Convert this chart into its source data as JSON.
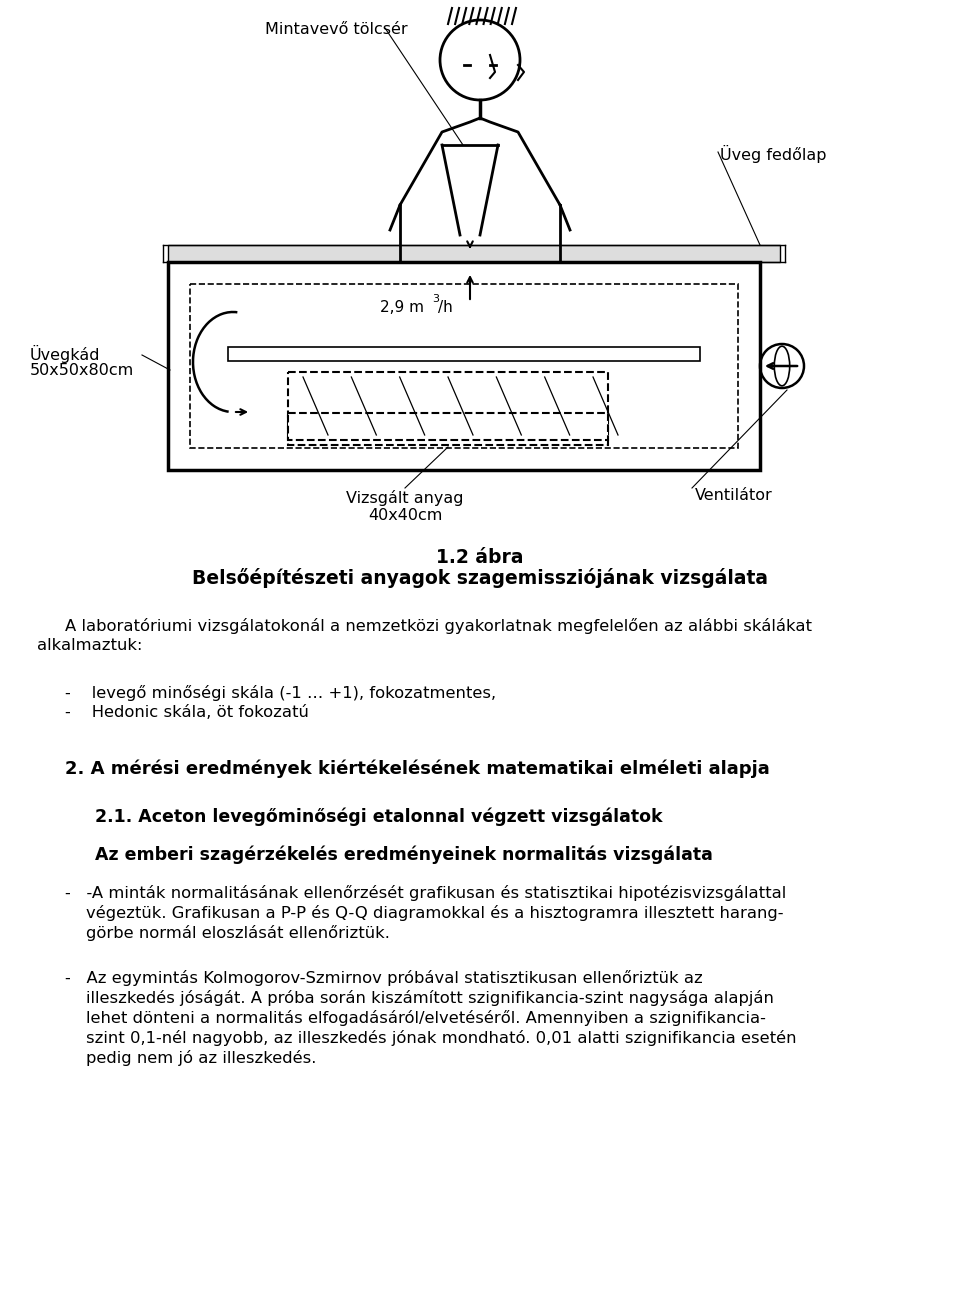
{
  "page_width": 9.6,
  "page_height": 13.02,
  "bg_color": "#ffffff",
  "label_mintavevo": "Mintavevő tölcsér",
  "label_uvegfedolap": "Üveg fedőlap",
  "label_uvegkad_1": "Üvegkád",
  "label_uvegkad_2": "50x50x80cm",
  "label_ventilator": "Ventilátor",
  "label_vizsgalt_1": "Vizsgált anyag",
  "label_vizsgalt_2": "40x40cm",
  "caption_bold": "1.2 ábra",
  "caption_text": "Belsőépítészeti anyagok szagemissziójának vizsgálata",
  "intro_line1": "A laboratóriumi vizsgálatokonál a nemzetközi gyakorlatnak megfelelően az alábbi skálákat",
  "intro_line2": "alkalmaztuk:",
  "bullet1": "-    levegő minőségi skála (-1 … +1), fokozatmentes,",
  "bullet2": "-    Hedonic skála, öt fokozatú",
  "section2": "2. A mérési eredmények kiértékelésének matematikai elméleti alapja",
  "section21": "2.1. Aceton levegőminőségi etalonnal végzett vizsgálatok",
  "section_az": "Az emberi szagérzékelés eredményeinek normalitás vizsgálata",
  "para1_l1": "-   -A minták normalitásának ellenőrzését grafikusan és statisztikai hipotézisvizsgálattal",
  "para1_l2": "    végeztük. Grafikusan a P-P és Q-Q diagramokkal és a hisztogramra illesztett harang-",
  "para1_l3": "    görbe normál eloszlását ellenőriztük.",
  "para2_l1": "-   Az egymintás Kolmogorov-Szmirnov próbával statisztikusan ellenőriztük az",
  "para2_l2": "    illeszkedés jóságát. A próba során kiszámított szignifikancia-szint nagysága alapján",
  "para2_l3": "    lehet dönteni a normalitás elfogadásáról/elvetéséről. Amennyiben a szignifikancia-",
  "para2_l4": "    szint 0,1-nél nagyobb, az illeszkedés jónak mondható. 0,01 alatti szignifikancia esetén",
  "para2_l5": "    pedig nem jó az illeszkedés."
}
